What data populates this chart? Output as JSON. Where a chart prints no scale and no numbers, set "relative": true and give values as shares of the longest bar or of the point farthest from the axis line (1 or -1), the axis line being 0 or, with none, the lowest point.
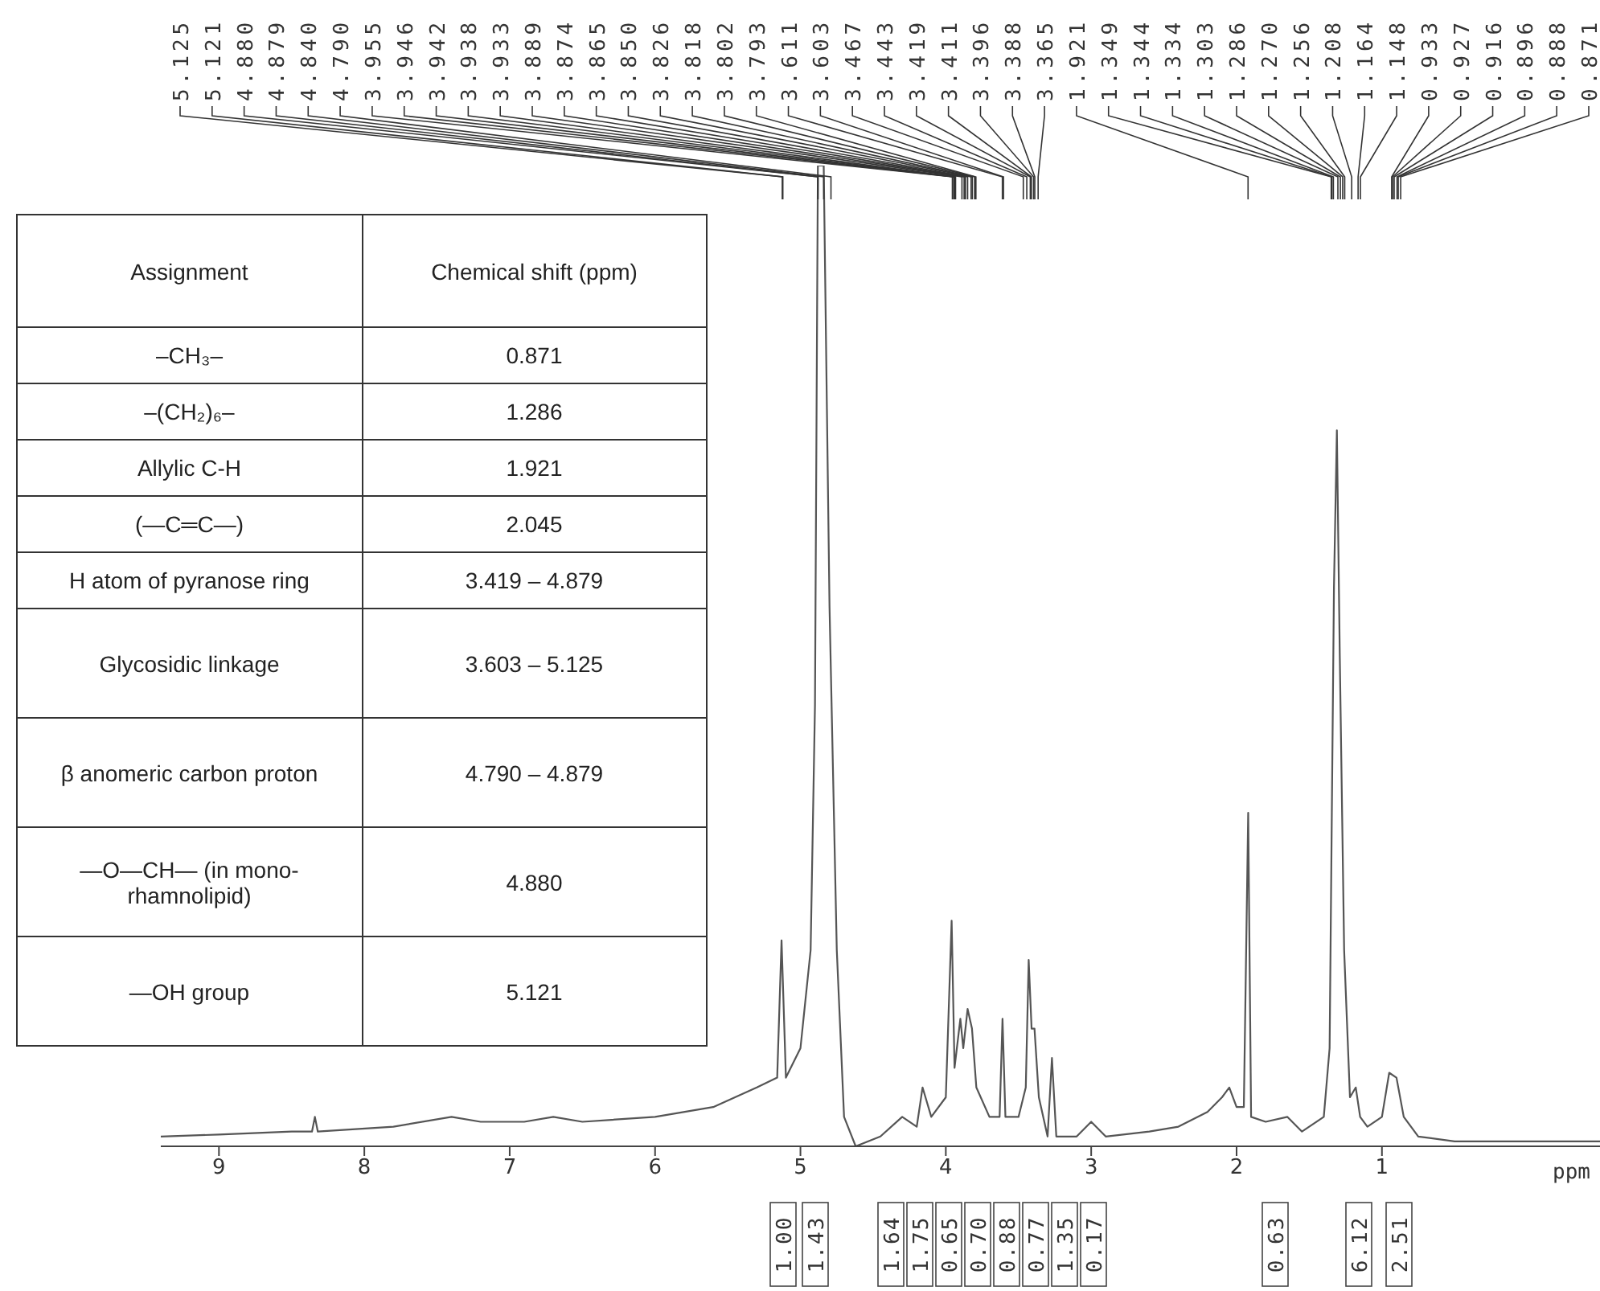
{
  "chart_data": [
    {
      "type": "line",
      "relative": true,
      "color": "#555555",
      "xlabel": "ppm",
      "xlim": [
        9.4,
        -0.5
      ],
      "xticks": [
        9,
        8,
        7,
        6,
        5,
        4,
        3,
        2,
        1
      ],
      "x": [
        9.4,
        9,
        8.5,
        8.36,
        8.34,
        8.32,
        7.8,
        7.4,
        7.2,
        6.9,
        6.7,
        6.5,
        6,
        5.6,
        5.3,
        5.16,
        5.13,
        5.1,
        5.0,
        4.93,
        4.9,
        4.88,
        4.84,
        4.8,
        4.75,
        4.7,
        4.62,
        4.45,
        4.3,
        4.2,
        4.16,
        4.1,
        4.0,
        3.96,
        3.94,
        3.9,
        3.88,
        3.85,
        3.82,
        3.79,
        3.7,
        3.63,
        3.61,
        3.59,
        3.5,
        3.45,
        3.43,
        3.41,
        3.39,
        3.36,
        3.3,
        3.27,
        3.24,
        3.1,
        3.0,
        2.9,
        2.6,
        2.4,
        2.2,
        2.1,
        2.05,
        2.0,
        1.95,
        1.92,
        1.9,
        1.8,
        1.65,
        1.55,
        1.4,
        1.36,
        1.33,
        1.31,
        1.29,
        1.26,
        1.22,
        1.18,
        1.15,
        1.1,
        1.0,
        0.95,
        0.9,
        0.85,
        0.75,
        0.5,
        0.0,
        -0.5
      ],
      "values": [
        0.01,
        0.012,
        0.015,
        0.015,
        0.03,
        0.015,
        0.02,
        0.03,
        0.025,
        0.025,
        0.03,
        0.025,
        0.03,
        0.04,
        0.06,
        0.07,
        0.21,
        0.07,
        0.1,
        0.2,
        0.45,
        1.0,
        1.0,
        0.55,
        0.2,
        0.03,
        0.0,
        0.01,
        0.03,
        0.02,
        0.06,
        0.03,
        0.05,
        0.23,
        0.08,
        0.13,
        0.1,
        0.14,
        0.12,
        0.06,
        0.03,
        0.03,
        0.13,
        0.03,
        0.03,
        0.06,
        0.19,
        0.12,
        0.12,
        0.05,
        0.01,
        0.09,
        0.01,
        0.01,
        0.025,
        0.01,
        0.015,
        0.02,
        0.035,
        0.05,
        0.06,
        0.04,
        0.04,
        0.34,
        0.03,
        0.025,
        0.03,
        0.015,
        0.03,
        0.1,
        0.57,
        0.73,
        0.5,
        0.2,
        0.05,
        0.06,
        0.03,
        0.02,
        0.03,
        0.075,
        0.07,
        0.03,
        0.01,
        0.005,
        0.005,
        0.005
      ],
      "annotations": [
        {
          "text": "5.125",
          "x": 5.125
        },
        {
          "text": "5.121",
          "x": 5.121
        },
        {
          "text": "4.880",
          "x": 4.88
        },
        {
          "text": "4.879",
          "x": 4.879
        },
        {
          "text": "4.840",
          "x": 4.84
        },
        {
          "text": "4.790",
          "x": 4.79
        },
        {
          "text": "3.955",
          "x": 3.955
        },
        {
          "text": "3.946",
          "x": 3.946
        },
        {
          "text": "3.942",
          "x": 3.942
        },
        {
          "text": "3.938",
          "x": 3.938
        },
        {
          "text": "3.933",
          "x": 3.933
        },
        {
          "text": "3.889",
          "x": 3.889
        },
        {
          "text": "3.874",
          "x": 3.874
        },
        {
          "text": "3.865",
          "x": 3.865
        },
        {
          "text": "3.850",
          "x": 3.85
        },
        {
          "text": "3.826",
          "x": 3.826
        },
        {
          "text": "3.818",
          "x": 3.818
        },
        {
          "text": "3.802",
          "x": 3.802
        },
        {
          "text": "3.793",
          "x": 3.793
        },
        {
          "text": "3.611",
          "x": 3.611
        },
        {
          "text": "3.603",
          "x": 3.603
        },
        {
          "text": "3.467",
          "x": 3.467
        },
        {
          "text": "3.443",
          "x": 3.443
        },
        {
          "text": "3.419",
          "x": 3.419
        },
        {
          "text": "3.411",
          "x": 3.411
        },
        {
          "text": "3.396",
          "x": 3.396
        },
        {
          "text": "3.388",
          "x": 3.388
        },
        {
          "text": "3.365",
          "x": 3.365
        },
        {
          "text": "1.921",
          "x": 1.921
        },
        {
          "text": "1.349",
          "x": 1.349
        },
        {
          "text": "1.344",
          "x": 1.344
        },
        {
          "text": "1.334",
          "x": 1.334
        },
        {
          "text": "1.303",
          "x": 1.303
        },
        {
          "text": "1.286",
          "x": 1.286
        },
        {
          "text": "1.270",
          "x": 1.27
        },
        {
          "text": "1.256",
          "x": 1.256
        },
        {
          "text": "1.208",
          "x": 1.208
        },
        {
          "text": "1.164",
          "x": 1.164
        },
        {
          "text": "1.148",
          "x": 1.148
        },
        {
          "text": "0.933",
          "x": 0.933
        },
        {
          "text": "0.927",
          "x": 0.927
        },
        {
          "text": "0.916",
          "x": 0.916
        },
        {
          "text": "0.896",
          "x": 0.896
        },
        {
          "text": "0.888",
          "x": 0.888
        },
        {
          "text": "0.871",
          "x": 0.871
        },
        "1.00",
        "1.43",
        "1.64",
        "1.75",
        "0.65",
        "0.70",
        "0.88",
        "0.77",
        "1.35",
        "0.17",
        "0.63",
        "6.12",
        "2.51"
      ]
    },
    {
      "type": "other",
      "annotations": [
        "Assignment",
        "Chemical shift (ppm)"
      ],
      "categories": [
        "–CH₃–",
        "–(CH₂)₆–",
        "Allylic C-H",
        "(—C═C—)",
        "H atom of pyranose ring",
        "Glycosidic linkage",
        "β anomeric carbon proton",
        "—O—CH— (in mono-rhamnolipid)",
        "—OH group"
      ],
      "value_labels": [
        "0.871",
        "1.286",
        "1.921",
        "2.045",
        "3.419 – 4.879",
        "3.603 – 5.125",
        "4.790 – 4.879",
        "4.880",
        "5.121"
      ]
    }
  ]
}
